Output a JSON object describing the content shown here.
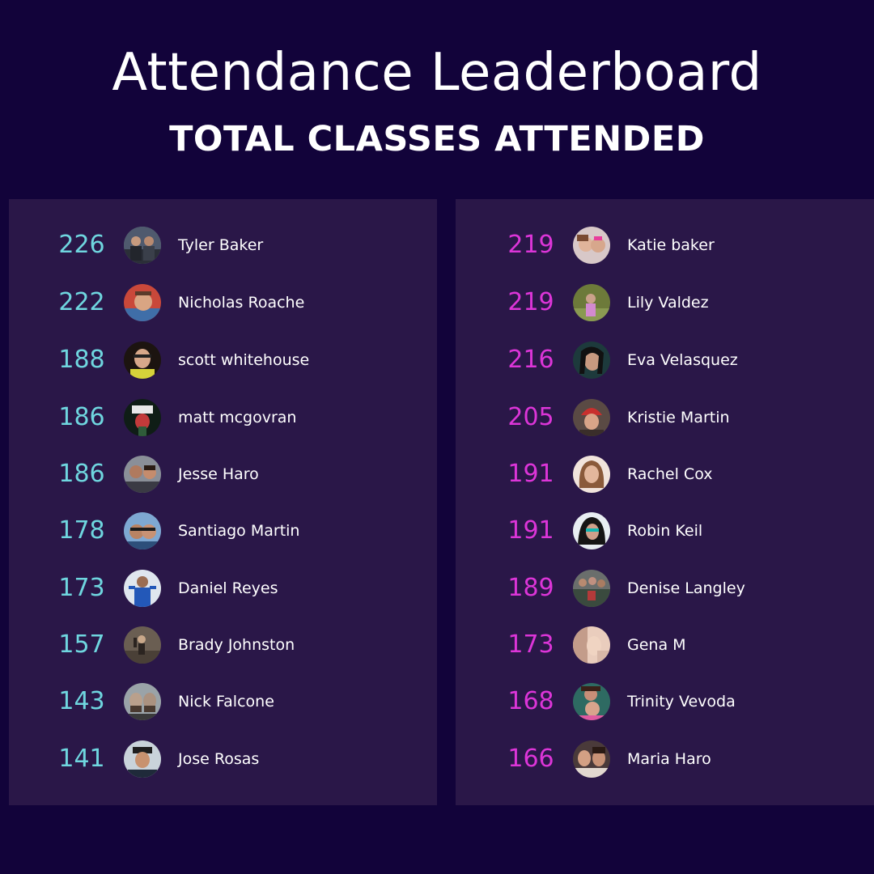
{
  "header": {
    "title": "Attendance Leaderboard",
    "subtitle": "TOTAL CLASSES ATTENDED"
  },
  "colors": {
    "background": "#12033a",
    "panel": "#2a1748",
    "left_score": "#6fd6df",
    "right_score": "#dc35d8",
    "text": "#ffffff"
  },
  "left_column": [
    {
      "score": "226",
      "name": "Tyler Baker",
      "avatar": "avatar-photo"
    },
    {
      "score": "222",
      "name": "Nicholas Roache",
      "avatar": "avatar-photo"
    },
    {
      "score": "188",
      "name": "scott whitehouse",
      "avatar": "avatar-photo"
    },
    {
      "score": "186",
      "name": "matt mcgovran",
      "avatar": "avatar-photo"
    },
    {
      "score": "186",
      "name": "Jesse Haro",
      "avatar": "avatar-photo"
    },
    {
      "score": "178",
      "name": "Santiago Martin",
      "avatar": "avatar-photo"
    },
    {
      "score": "173",
      "name": "Daniel Reyes",
      "avatar": "avatar-photo"
    },
    {
      "score": "157",
      "name": "Brady Johnston",
      "avatar": "avatar-photo"
    },
    {
      "score": "143",
      "name": "Nick Falcone",
      "avatar": "avatar-photo"
    },
    {
      "score": "141",
      "name": "Jose Rosas",
      "avatar": "avatar-photo"
    }
  ],
  "right_column": [
    {
      "score": "219",
      "name": "Katie baker",
      "avatar": "avatar-photo"
    },
    {
      "score": "219",
      "name": "Lily Valdez",
      "avatar": "avatar-photo"
    },
    {
      "score": "216",
      "name": "Eva Velasquez",
      "avatar": "avatar-photo"
    },
    {
      "score": "205",
      "name": "Kristie Martin",
      "avatar": "avatar-photo"
    },
    {
      "score": "191",
      "name": "Rachel Cox",
      "avatar": "avatar-photo"
    },
    {
      "score": "191",
      "name": "Robin Keil",
      "avatar": "avatar-photo"
    },
    {
      "score": "189",
      "name": "Denise Langley",
      "avatar": "avatar-photo"
    },
    {
      "score": "173",
      "name": "Gena M",
      "avatar": "avatar-photo"
    },
    {
      "score": "168",
      "name": "Trinity Vevoda",
      "avatar": "avatar-photo"
    },
    {
      "score": "166",
      "name": "Maria Haro",
      "avatar": "avatar-photo"
    }
  ]
}
